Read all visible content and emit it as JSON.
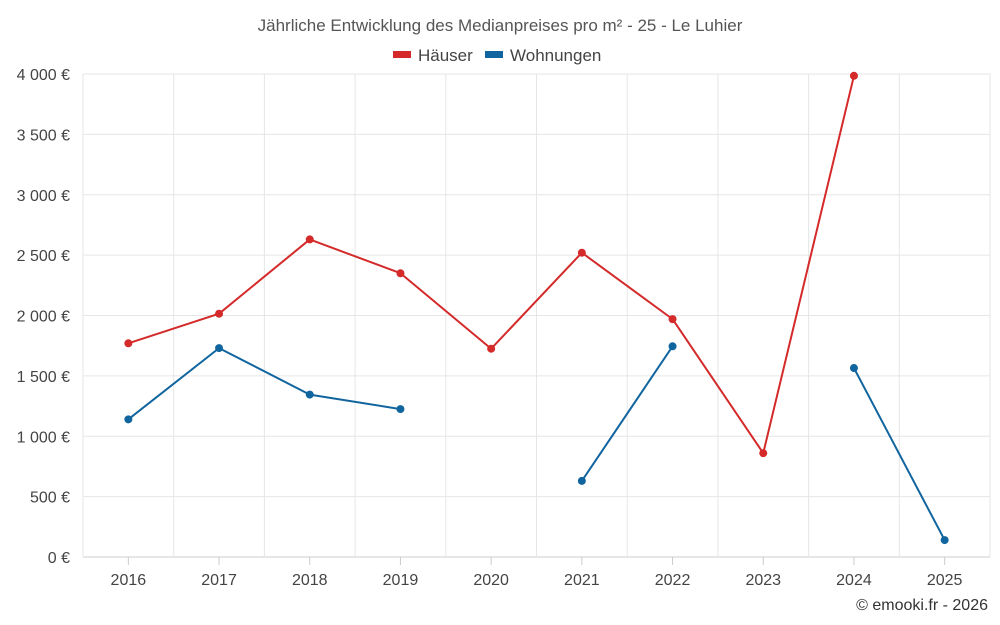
{
  "chart_data": {
    "type": "line",
    "title": "Jährliche Entwicklung des Medianpreises pro m² - 25 - Le Luhier",
    "xlabel": "",
    "ylabel": "",
    "categories": [
      "2016",
      "2017",
      "2018",
      "2019",
      "2020",
      "2021",
      "2022",
      "2023",
      "2024",
      "2025"
    ],
    "ylim": [
      0,
      4000
    ],
    "yticks": [
      0,
      500,
      1000,
      1500,
      2000,
      2500,
      3000,
      3500,
      4000
    ],
    "ytick_labels": [
      "0 €",
      "500 €",
      "1 000 €",
      "1 500 €",
      "2 000 €",
      "2 500 €",
      "3 000 €",
      "3 500 €",
      "4 000 €"
    ],
    "grid": true,
    "legend_position": "top-center",
    "series": [
      {
        "name": "Häuser",
        "color": "#d42a2a",
        "values": [
          1770,
          2015,
          2630,
          2350,
          1725,
          2520,
          1970,
          860,
          3985,
          null
        ]
      },
      {
        "name": "Wohnungen",
        "color": "#11659e",
        "values": [
          1140,
          1730,
          1345,
          1225,
          null,
          630,
          1745,
          null,
          1565,
          140
        ]
      }
    ]
  },
  "credit": "© emooki.fr - 2026"
}
